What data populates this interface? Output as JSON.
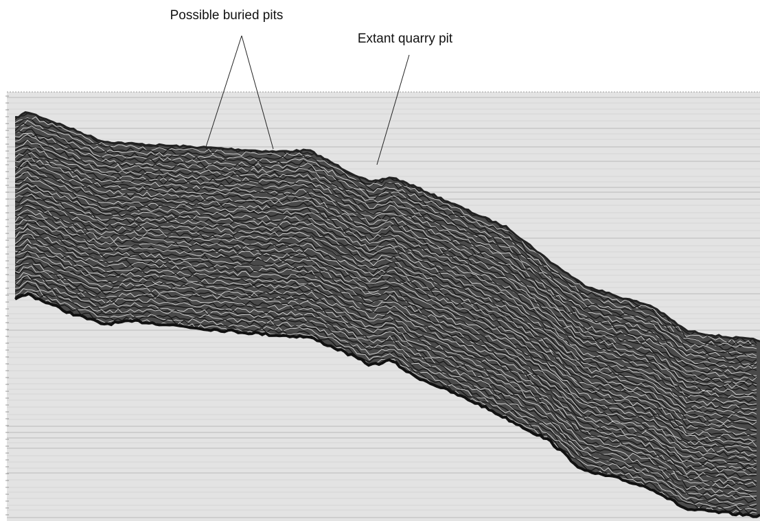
{
  "annotations": [
    {
      "label": "Possible buried pits"
    },
    {
      "label": "Extant quarry pit"
    }
  ]
}
